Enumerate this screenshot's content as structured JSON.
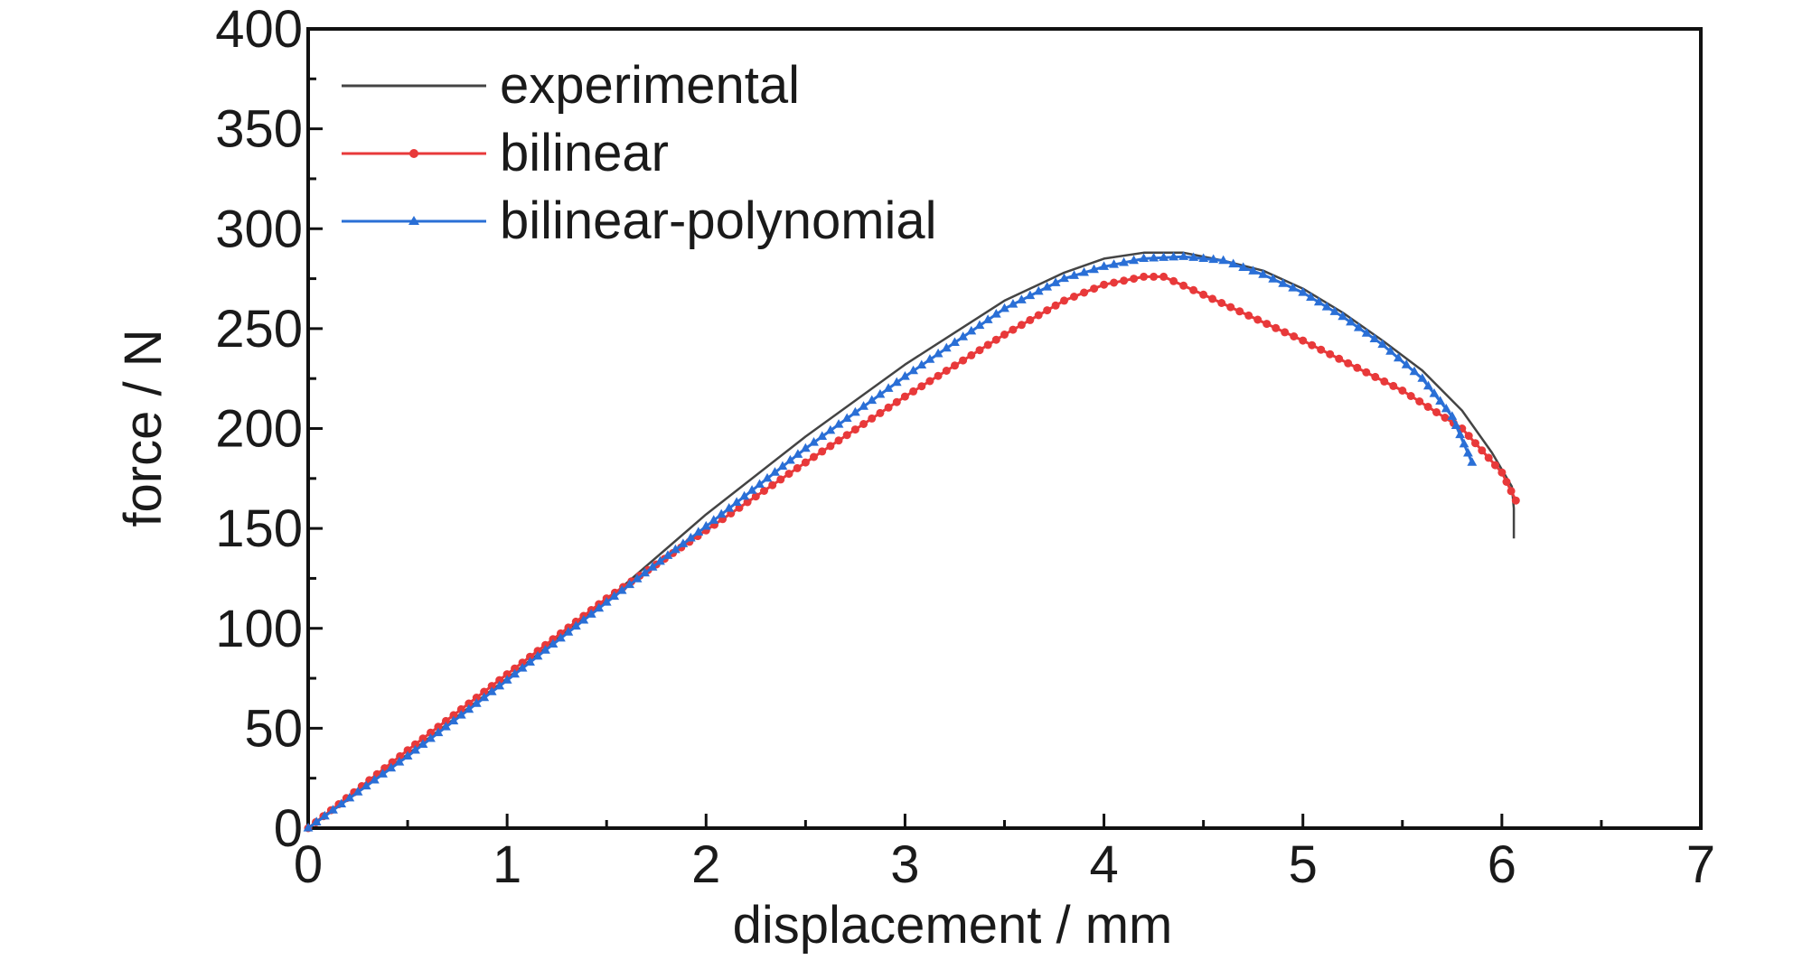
{
  "chart_data": {
    "type": "line",
    "title": "",
    "xlabel": "displacement / mm",
    "ylabel": "force / N",
    "xlim": [
      0,
      7
    ],
    "ylim": [
      0,
      400
    ],
    "xticks": [
      0,
      1,
      2,
      3,
      4,
      5,
      6,
      7
    ],
    "yticks": [
      0,
      50,
      100,
      150,
      200,
      250,
      300,
      350,
      400
    ],
    "grid": false,
    "legend_position": "top-left",
    "series": [
      {
        "name": "experimental",
        "color": "#444444",
        "marker": "none",
        "points": [
          [
            0,
            0
          ],
          [
            0.5,
            37
          ],
          [
            1,
            75
          ],
          [
            1.5,
            114
          ],
          [
            2,
            157
          ],
          [
            2.5,
            196
          ],
          [
            3,
            232
          ],
          [
            3.5,
            264
          ],
          [
            3.8,
            278
          ],
          [
            4,
            285
          ],
          [
            4.2,
            288
          ],
          [
            4.4,
            288
          ],
          [
            4.6,
            284
          ],
          [
            4.8,
            279
          ],
          [
            5,
            270
          ],
          [
            5.2,
            258
          ],
          [
            5.4,
            244
          ],
          [
            5.6,
            229
          ],
          [
            5.8,
            209
          ],
          [
            5.95,
            188
          ],
          [
            6.05,
            171
          ],
          [
            6.06,
            160
          ],
          [
            6.06,
            145
          ]
        ]
      },
      {
        "name": "bilinear",
        "color": "#e8393a",
        "marker": "circle",
        "points": [
          [
            0,
            0
          ],
          [
            0.5,
            39
          ],
          [
            1,
            77
          ],
          [
            1.5,
            115
          ],
          [
            2,
            149
          ],
          [
            2.5,
            183
          ],
          [
            3,
            216
          ],
          [
            3.5,
            247
          ],
          [
            3.8,
            264
          ],
          [
            4,
            272
          ],
          [
            4.2,
            276
          ],
          [
            4.3,
            276
          ],
          [
            4.5,
            267
          ],
          [
            5,
            244
          ],
          [
            5.5,
            219
          ],
          [
            5.8,
            200
          ],
          [
            6,
            178
          ],
          [
            6.07,
            164
          ]
        ]
      },
      {
        "name": "bilinear-polynomial",
        "color": "#2a6fd6",
        "marker": "triangle",
        "points": [
          [
            0,
            0
          ],
          [
            0.5,
            36
          ],
          [
            1,
            74
          ],
          [
            1.5,
            113
          ],
          [
            2,
            151
          ],
          [
            2.5,
            190
          ],
          [
            3,
            226
          ],
          [
            3.5,
            260
          ],
          [
            3.8,
            275
          ],
          [
            4,
            281
          ],
          [
            4.2,
            285
          ],
          [
            4.4,
            286
          ],
          [
            4.6,
            284
          ],
          [
            4.8,
            277
          ],
          [
            5,
            268
          ],
          [
            5.2,
            256
          ],
          [
            5.4,
            242
          ],
          [
            5.6,
            225
          ],
          [
            5.75,
            206
          ],
          [
            5.85,
            183
          ]
        ]
      }
    ]
  }
}
